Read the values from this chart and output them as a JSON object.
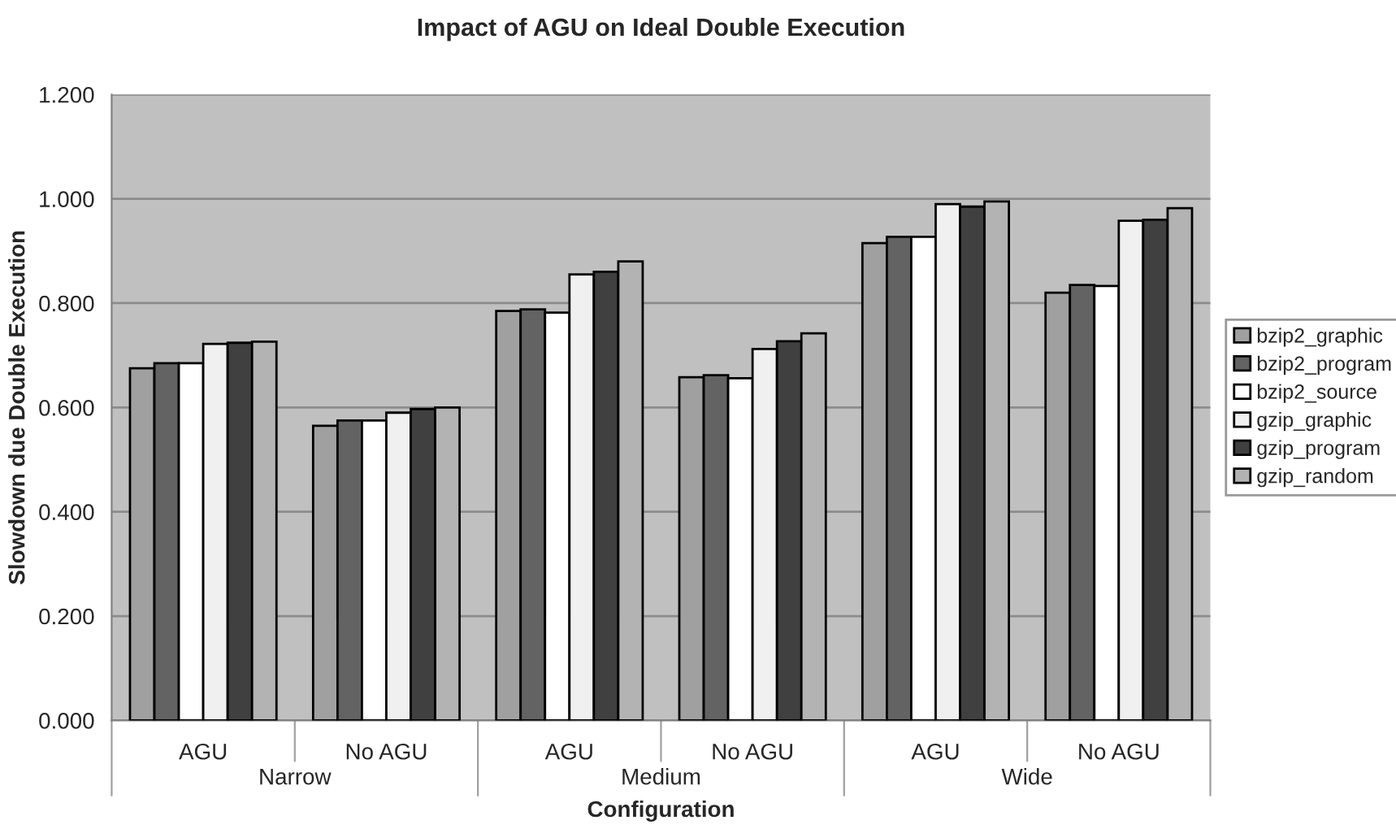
{
  "chart_data": {
    "type": "bar",
    "title": "Impact of AGU on Ideal Double Execution",
    "xlabel": "Configuration",
    "ylabel": "Slowdown due Double Execution",
    "categories": [
      "AGU",
      "No AGU",
      "AGU",
      "No AGU",
      "AGU",
      "No AGU"
    ],
    "annotations": [
      "Narrow",
      "Medium",
      "Wide"
    ],
    "series": [
      {
        "name": "bzip2_graphic",
        "color": "#a0a0a0",
        "values": [
          0.675,
          0.565,
          0.785,
          0.658,
          0.915,
          0.82
        ]
      },
      {
        "name": "bzip2_program",
        "color": "#636363",
        "values": [
          0.685,
          0.575,
          0.788,
          0.662,
          0.927,
          0.835
        ]
      },
      {
        "name": "bzip2_source",
        "color": "#ffffff",
        "values": [
          0.685,
          0.575,
          0.782,
          0.656,
          0.927,
          0.833
        ]
      },
      {
        "name": "gzip_graphic",
        "color": "#f0f0f0",
        "values": [
          0.722,
          0.59,
          0.855,
          0.712,
          0.99,
          0.958
        ]
      },
      {
        "name": "gzip_program",
        "color": "#404040",
        "values": [
          0.724,
          0.597,
          0.86,
          0.727,
          0.985,
          0.96
        ]
      },
      {
        "name": "gzip_random",
        "color": "#b3b3b3",
        "values": [
          0.726,
          0.6,
          0.88,
          0.742,
          0.995,
          0.982
        ]
      }
    ],
    "ylim": [
      0,
      1.2
    ],
    "yticks": [
      {
        "value": 0,
        "label": "0.000"
      },
      {
        "value": 0.2,
        "label": "0.200"
      },
      {
        "value": 0.4,
        "label": "0.400"
      },
      {
        "value": 0.6,
        "label": "0.600"
      },
      {
        "value": 0.8,
        "label": "0.800"
      },
      {
        "value": 1.0,
        "label": "1.000"
      },
      {
        "value": 1.2,
        "label": "1.200"
      }
    ],
    "grid": "y",
    "legend": "right"
  }
}
